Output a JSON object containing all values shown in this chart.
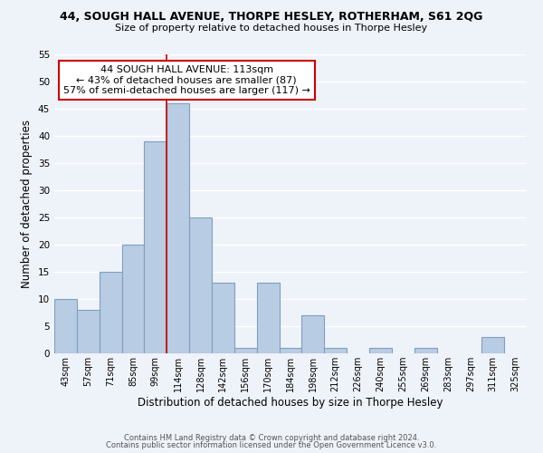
{
  "title": "44, SOUGH HALL AVENUE, THORPE HESLEY, ROTHERHAM, S61 2QG",
  "subtitle": "Size of property relative to detached houses in Thorpe Hesley",
  "xlabel": "Distribution of detached houses by size in Thorpe Hesley",
  "ylabel": "Number of detached properties",
  "bin_labels": [
    "43sqm",
    "57sqm",
    "71sqm",
    "85sqm",
    "99sqm",
    "114sqm",
    "128sqm",
    "142sqm",
    "156sqm",
    "170sqm",
    "184sqm",
    "198sqm",
    "212sqm",
    "226sqm",
    "240sqm",
    "255sqm",
    "269sqm",
    "283sqm",
    "297sqm",
    "311sqm",
    "325sqm"
  ],
  "bar_values": [
    10,
    8,
    15,
    20,
    39,
    46,
    25,
    13,
    1,
    13,
    1,
    7,
    1,
    0,
    1,
    0,
    1,
    0,
    0,
    3,
    0
  ],
  "bar_color": "#b8cce4",
  "bar_edge_color": "#7f9fbf",
  "vline_x_index": 5,
  "annotation_title": "44 SOUGH HALL AVENUE: 113sqm",
  "annotation_line1": "← 43% of detached houses are smaller (87)",
  "annotation_line2": "57% of semi-detached houses are larger (117) →",
  "annotation_box_color": "#ffffff",
  "annotation_box_edge_color": "#cc0000",
  "ylim": [
    0,
    55
  ],
  "yticks": [
    0,
    5,
    10,
    15,
    20,
    25,
    30,
    35,
    40,
    45,
    50,
    55
  ],
  "footer1": "Contains HM Land Registry data © Crown copyright and database right 2024.",
  "footer2": "Contains public sector information licensed under the Open Government Licence v3.0.",
  "bg_color": "#eef2f9",
  "grid_color": "#ffffff",
  "vline_color": "#cc0000"
}
